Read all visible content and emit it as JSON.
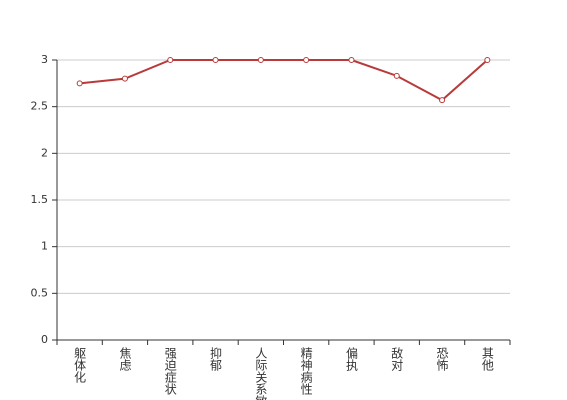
{
  "chart_data": {
    "type": "line",
    "categories": [
      "躯体化",
      "焦虑",
      "强迫症状",
      "抑郁",
      "人际关系敏感",
      "精神病性",
      "偏执",
      "敌对",
      "恐怖",
      "其他"
    ],
    "values": [
      2.75,
      2.8,
      3,
      3,
      3,
      3,
      3,
      2.83,
      2.57,
      3
    ],
    "color": "#b93a3a",
    "ylim": [
      0,
      3
    ],
    "yticks": [
      0,
      0.5,
      1,
      1.5,
      2,
      2.5,
      3
    ],
    "grid": true
  }
}
